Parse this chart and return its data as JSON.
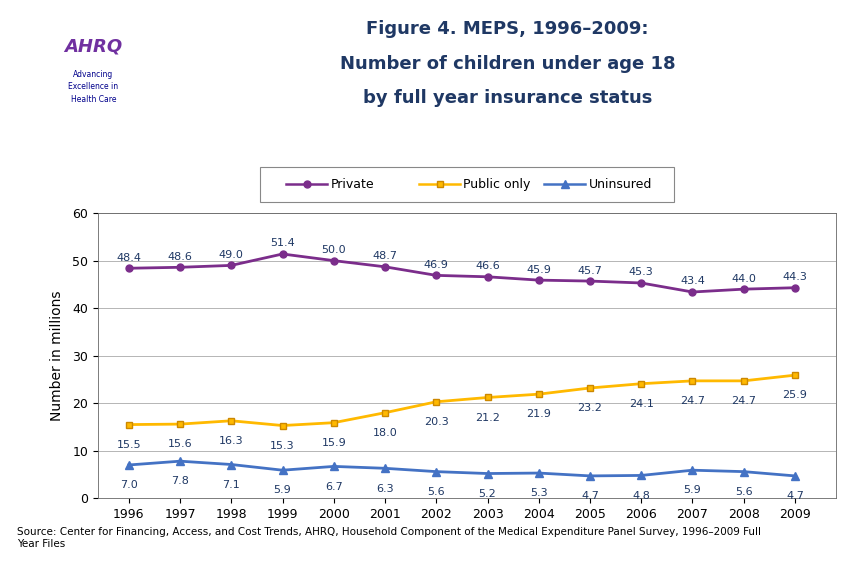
{
  "years": [
    1996,
    1997,
    1998,
    1999,
    2000,
    2001,
    2002,
    2003,
    2004,
    2005,
    2006,
    2007,
    2008,
    2009
  ],
  "private": [
    48.4,
    48.6,
    49.0,
    51.4,
    50.0,
    48.7,
    46.9,
    46.6,
    45.9,
    45.7,
    45.3,
    43.4,
    44.0,
    44.3
  ],
  "public_only": [
    15.5,
    15.6,
    16.3,
    15.3,
    15.9,
    18.0,
    20.3,
    21.2,
    21.9,
    23.2,
    24.1,
    24.7,
    24.7,
    25.9
  ],
  "uninsured": [
    7.0,
    7.8,
    7.1,
    5.9,
    6.7,
    6.3,
    5.6,
    5.2,
    5.3,
    4.7,
    4.8,
    5.9,
    5.6,
    4.7
  ],
  "private_color": "#7B2D8B",
  "public_color": "#FFB900",
  "uninsured_color": "#4472C4",
  "title_line1": "Figure 4. MEPS, 1996–2009:",
  "title_line2": "Number of children under age 18",
  "title_line3": "by full year insurance status",
  "ylabel": "Number in millions",
  "ylim": [
    0,
    60
  ],
  "yticks": [
    0,
    10,
    20,
    30,
    40,
    50,
    60
  ],
  "source_text": "Source: Center for Financing, Access, and Cost Trends, AHRQ, Household Component of the Medical Expenditure Panel Survey, 1996–2009 Full\nYear Files",
  "title_color": "#1F3864",
  "background_color": "#FFFFFF",
  "header_bar_color": "#00008B",
  "legend_labels": [
    "Private",
    "Public only",
    "Uninsured"
  ],
  "label_color": "#1F3864"
}
